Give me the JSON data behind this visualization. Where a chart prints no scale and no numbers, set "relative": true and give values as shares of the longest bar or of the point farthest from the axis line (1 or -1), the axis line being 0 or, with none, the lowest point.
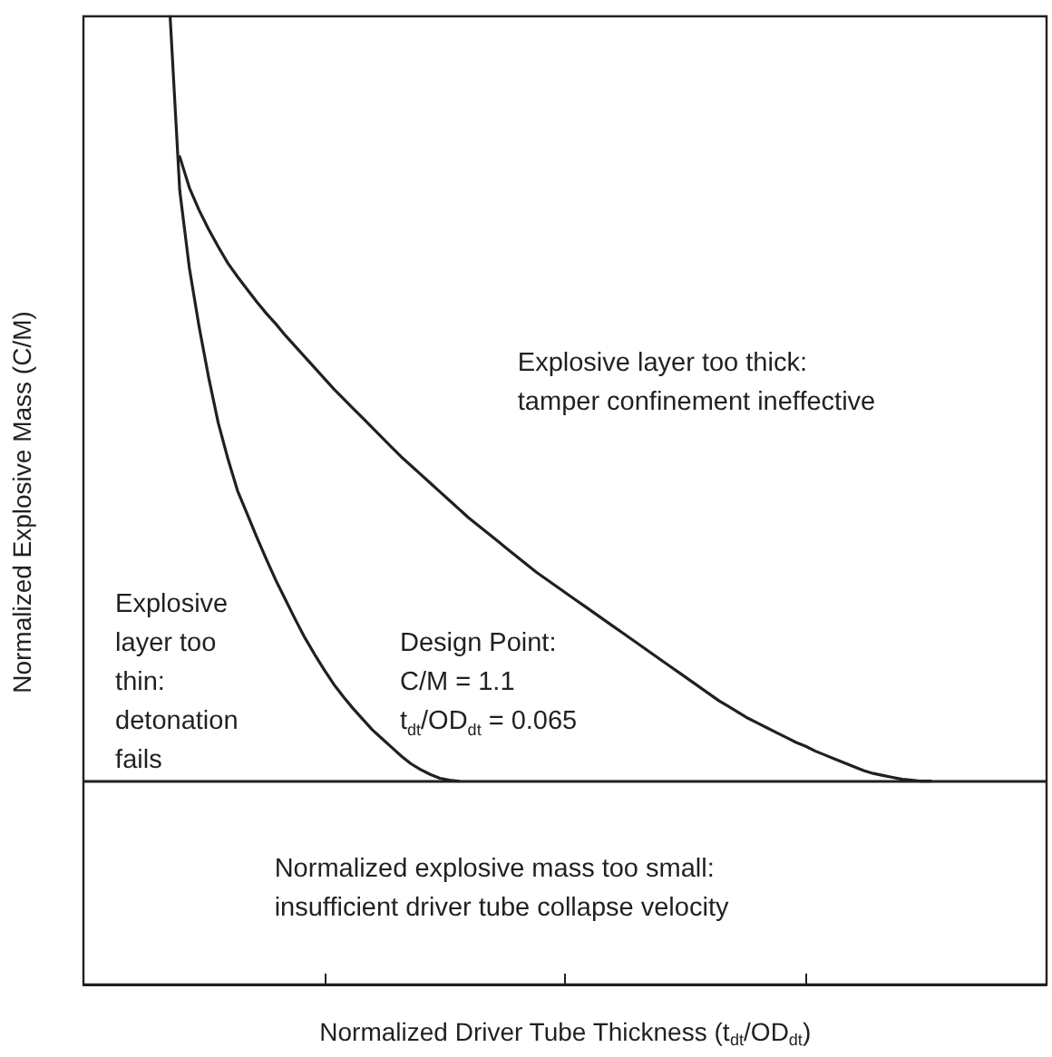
{
  "chart_data": {
    "type": "line",
    "relative": true,
    "xlabel": "Normalized Driver Tube Thickness (t$_{dt}$/OD$_{dt}$)",
    "ylabel": "Normalized Explosive Mass (C/M)",
    "categories": [
      null,
      null,
      null,
      null,
      null,
      null,
      null,
      null,
      null,
      null,
      null,
      null,
      null,
      null,
      null,
      null,
      null,
      null,
      null,
      null,
      null,
      null,
      null,
      null,
      null,
      null,
      null,
      null,
      null,
      null,
      null,
      null,
      null,
      null,
      null,
      null,
      null,
      null,
      null,
      null,
      null,
      null,
      null,
      null,
      null,
      null,
      null,
      null,
      null,
      null,
      null,
      null,
      null,
      null,
      null,
      null,
      null,
      null,
      null,
      null,
      null,
      null,
      null,
      null,
      null,
      null,
      null,
      null,
      null,
      null,
      null,
      null,
      null,
      null,
      null,
      null,
      null,
      null,
      null,
      null,
      null,
      null,
      null,
      null,
      null,
      null,
      null,
      null,
      null,
      null,
      null,
      null,
      null,
      null,
      null,
      null,
      null,
      null,
      null,
      null,
      null
    ],
    "grid": false,
    "marker": "none",
    "line_style": "solid",
    "series": [
      {
        "color": "#231f20",
        "values": [
          null,
          null,
          null,
          null,
          null,
          null,
          null,
          null,
          null,
          1.0,
          0.82,
          0.74,
          0.68,
          0.627,
          0.58,
          0.543,
          0.51,
          0.486,
          0.462,
          0.439,
          0.417,
          0.397,
          0.377,
          0.358,
          0.341,
          0.325,
          0.31,
          0.297,
          0.285,
          0.274,
          0.263,
          0.254,
          0.245,
          0.236,
          0.228,
          0.222,
          0.217,
          0.213,
          0.211,
          0.21,
          null,
          null,
          null,
          null,
          null,
          null,
          null,
          null,
          null,
          null,
          null,
          null,
          null,
          null,
          null,
          null,
          null,
          null,
          null,
          null,
          null,
          null,
          null,
          null,
          null,
          null,
          null,
          null,
          null,
          null,
          null,
          null,
          null,
          null,
          null,
          null,
          null,
          null,
          null,
          null,
          null,
          null,
          null,
          null,
          null,
          null,
          null,
          null,
          null,
          null,
          null,
          null,
          null,
          null,
          null,
          null,
          null,
          null,
          null,
          null,
          null
        ]
      },
      {
        "color": "#231f20",
        "values": [
          null,
          null,
          null,
          null,
          null,
          null,
          null,
          null,
          null,
          null,
          0.855,
          0.823,
          0.8,
          0.78,
          0.762,
          0.745,
          0.731,
          0.718,
          0.705,
          0.693,
          0.682,
          0.67,
          0.659,
          0.648,
          0.637,
          0.626,
          0.615,
          0.605,
          0.595,
          0.585,
          0.575,
          0.565,
          0.555,
          0.545,
          0.536,
          0.527,
          0.518,
          0.509,
          0.5,
          0.491,
          0.482,
          0.474,
          0.466,
          0.458,
          0.45,
          0.442,
          0.434,
          0.426,
          0.419,
          0.412,
          0.405,
          0.398,
          0.391,
          0.384,
          0.377,
          0.37,
          0.363,
          0.356,
          0.349,
          0.342,
          0.335,
          0.328,
          0.321,
          0.314,
          0.307,
          0.3,
          0.293,
          0.287,
          0.281,
          0.275,
          0.27,
          0.265,
          0.26,
          0.255,
          0.25,
          0.246,
          0.241,
          0.237,
          0.233,
          0.229,
          0.225,
          0.221,
          0.218,
          0.216,
          0.214,
          0.212,
          0.211,
          0.21,
          0.21,
          null,
          null,
          null,
          null,
          null,
          null,
          null,
          null,
          null,
          null,
          null,
          null
        ]
      }
    ],
    "ref_lines": [
      {
        "axis": "y",
        "value": 0.21,
        "label": null,
        "color": "#231f20",
        "line_style": "solid"
      }
    ],
    "annotations": [
      "Explosive layer too thick:\ntamper confinement ineffective",
      "Explosive\nlayer too\nthin:\ndetonation\nfails",
      "Design Point:\nC/M = 1.1\nt$_{dt}$/OD$_{dt}$ = 0.065",
      "Normalized explosive mass too small:\ninsufficient driver tube collapse velocity"
    ]
  }
}
